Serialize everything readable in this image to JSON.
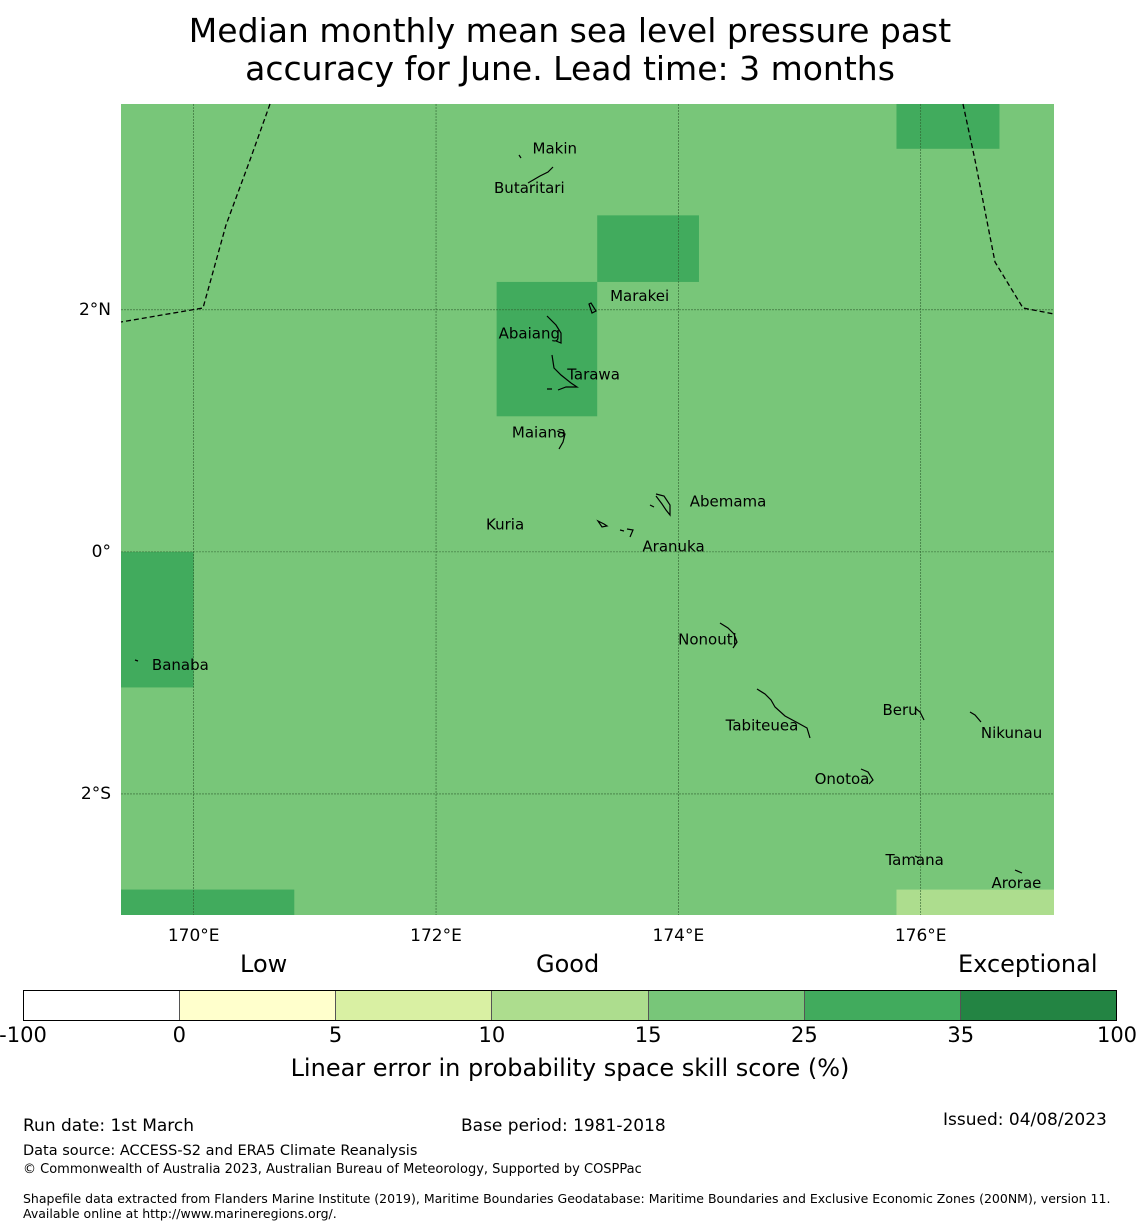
{
  "title_line1": "Median monthly mean sea level pressure past",
  "title_line2": "accuracy for June. Lead time: 3 months",
  "map": {
    "lon_range": [
      169.4,
      177.1
    ],
    "lat_range": [
      -3.0,
      3.7
    ],
    "lat_ticks": [
      {
        "value": 2,
        "label": "2°N"
      },
      {
        "value": 0,
        "label": "0°"
      },
      {
        "value": -2,
        "label": "2°S"
      }
    ],
    "lon_ticks": [
      {
        "value": 170,
        "label": "170°E"
      },
      {
        "value": 172,
        "label": "172°E"
      },
      {
        "value": 174,
        "label": "174°E"
      },
      {
        "value": 176,
        "label": "176°E"
      }
    ],
    "background_color": "#78c679",
    "skill_cells": [
      {
        "lon0": 175.8,
        "lon1": 176.65,
        "lat0": 3.33,
        "lat1": 3.7,
        "color": "#41ab5d"
      },
      {
        "lon0": 173.33,
        "lon1": 174.17,
        "lat0": 2.23,
        "lat1": 2.78,
        "color": "#41ab5d"
      },
      {
        "lon0": 172.5,
        "lon1": 173.33,
        "lat0": 1.12,
        "lat1": 2.23,
        "color": "#41ab5d"
      },
      {
        "lon0": 169.4,
        "lon1": 170.0,
        "lat0": -1.12,
        "lat1": 0.0,
        "color": "#41ab5d"
      },
      {
        "lon0": 169.4,
        "lon1": 170.83,
        "lat0": -3.0,
        "lat1": -2.79,
        "color": "#41ab5d"
      },
      {
        "lon0": 175.8,
        "lon1": 177.1,
        "lat0": -3.0,
        "lat1": -2.79,
        "color": "#addd8e"
      }
    ],
    "places": [
      {
        "name": "Makin",
        "lon": 172.98,
        "lat": 3.33
      },
      {
        "name": "Butaritari",
        "lon": 172.77,
        "lat": 3.0
      },
      {
        "name": "Marakei",
        "lon": 173.68,
        "lat": 2.11
      },
      {
        "name": "Abaiang",
        "lon": 172.77,
        "lat": 1.8
      },
      {
        "name": "Tarawa",
        "lon": 173.3,
        "lat": 1.46
      },
      {
        "name": "Maiana",
        "lon": 172.85,
        "lat": 0.98
      },
      {
        "name": "Abemama",
        "lon": 174.41,
        "lat": 0.41
      },
      {
        "name": "Kuria",
        "lon": 172.57,
        "lat": 0.22
      },
      {
        "name": "Aranuka",
        "lon": 173.96,
        "lat": 0.04
      },
      {
        "name": "Nonouti",
        "lon": 174.24,
        "lat": -0.73
      },
      {
        "name": "Banaba",
        "lon": 169.89,
        "lat": -0.94
      },
      {
        "name": "Beru",
        "lon": 175.83,
        "lat": -1.31
      },
      {
        "name": "Nikunau",
        "lon": 176.75,
        "lat": -1.5
      },
      {
        "name": "Tabiteuea",
        "lon": 174.69,
        "lat": -1.44
      },
      {
        "name": "Onotoa",
        "lon": 175.35,
        "lat": -1.88
      },
      {
        "name": "Tamana",
        "lon": 175.95,
        "lat": -2.55
      },
      {
        "name": "Arorae",
        "lon": 176.79,
        "lat": -2.74
      }
    ]
  },
  "colorbar": {
    "category_labels": {
      "low": "Low",
      "good": "Good",
      "exceptional": "Exceptional"
    },
    "tick_labels": [
      "-100",
      "0",
      "5",
      "10",
      "15",
      "25",
      "35",
      "100"
    ],
    "colors": [
      "#ffffff",
      "#ffffcc",
      "#d9f0a3",
      "#addd8e",
      "#78c679",
      "#41ab5d",
      "#238443"
    ],
    "title": "Linear error in probability space skill score (%)"
  },
  "footer": {
    "run_date": "Run date: 1st March",
    "base_period": "Base period: 1981-2018",
    "issued": "Issued: 04/08/2023",
    "data_source": "Data source: ACCESS-S2 and ERA5 Climate Reanalysis",
    "copyright": "© Commonwealth of Australia 2023, Australian Bureau of Meteorology, Supported by COSPPac",
    "shapefile": "Shapefile data extracted from Flanders Marine Institute (2019), Maritime Boundaries Geodatabase: Maritime Boundaries and Exclusive Economic Zones (200NM), version 11. Available online at http://www.marineregions.org/."
  }
}
